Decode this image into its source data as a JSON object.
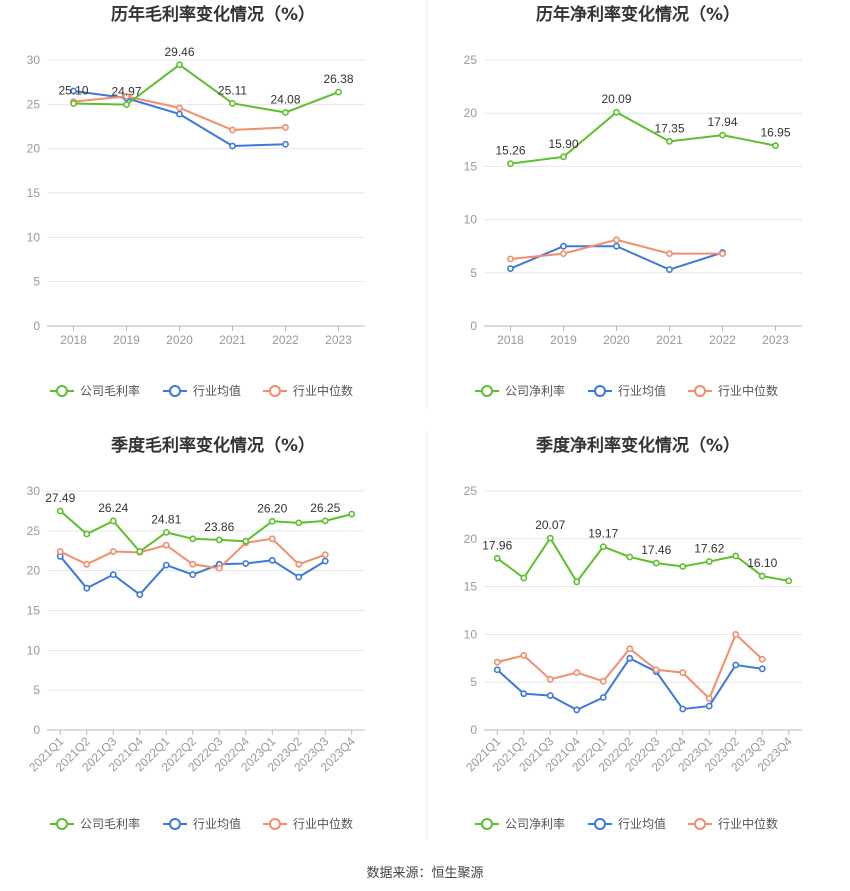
{
  "source_label": "数据来源：恒生聚源",
  "colors": {
    "company": "#5cc02c",
    "industry_avg": "#3d78dc",
    "industry_median": "#f38d6b",
    "grid": "#e6e6e6",
    "axis": "#999999",
    "text": "#333333"
  },
  "chart_data": [
    {
      "type": "line",
      "title": "历年毛利率变化情况（%）",
      "categories": [
        "2018",
        "2019",
        "2020",
        "2021",
        "2022",
        "2023"
      ],
      "ylim": [
        0,
        30
      ],
      "yticks": [
        0,
        5,
        10,
        15,
        20,
        25,
        30
      ],
      "grid": true,
      "legend": "bottom",
      "series": [
        {
          "name": "公司毛利率",
          "color": "#5cc02c",
          "values": [
            25.1,
            24.97,
            29.46,
            25.11,
            24.08,
            26.38
          ],
          "labels": [
            "25.10",
            "24.97",
            "29.46",
            "25.11",
            "24.08",
            "26.38"
          ]
        },
        {
          "name": "行业均值",
          "color": "#3d78dc",
          "values": [
            26.5,
            25.7,
            23.9,
            20.3,
            20.5,
            null
          ]
        },
        {
          "name": "行业中位数",
          "color": "#f38d6b",
          "values": [
            25.3,
            25.9,
            24.6,
            22.1,
            22.4,
            null
          ]
        }
      ]
    },
    {
      "type": "line",
      "title": "历年净利率变化情况（%）",
      "categories": [
        "2018",
        "2019",
        "2020",
        "2021",
        "2022",
        "2023"
      ],
      "ylim": [
        0,
        25
      ],
      "yticks": [
        0,
        5,
        10,
        15,
        20,
        25
      ],
      "grid": true,
      "legend": "bottom",
      "series": [
        {
          "name": "公司净利率",
          "color": "#5cc02c",
          "values": [
            15.26,
            15.9,
            20.09,
            17.35,
            17.94,
            16.95
          ],
          "labels": [
            "15.26",
            "15.90",
            "20.09",
            "17.35",
            "17.94",
            "16.95"
          ]
        },
        {
          "name": "行业均值",
          "color": "#3d78dc",
          "values": [
            5.4,
            7.5,
            7.5,
            5.3,
            6.9,
            null
          ]
        },
        {
          "name": "行业中位数",
          "color": "#f38d6b",
          "values": [
            6.3,
            6.8,
            8.1,
            6.8,
            6.8,
            null
          ]
        }
      ]
    },
    {
      "type": "line",
      "title": "季度毛利率变化情况（%）",
      "categories": [
        "2021Q1",
        "2021Q2",
        "2021Q3",
        "2021Q4",
        "2022Q1",
        "2022Q2",
        "2022Q3",
        "2022Q4",
        "2023Q1",
        "2023Q2",
        "2023Q3",
        "2023Q4"
      ],
      "ylim": [
        0,
        30
      ],
      "yticks": [
        0,
        5,
        10,
        15,
        20,
        25,
        30
      ],
      "grid": true,
      "legend": "bottom",
      "series": [
        {
          "name": "公司毛利率",
          "color": "#5cc02c",
          "values": [
            27.49,
            24.6,
            26.24,
            22.4,
            24.81,
            24.0,
            23.86,
            23.7,
            26.2,
            26.0,
            26.25,
            27.1
          ],
          "labels": [
            "27.49",
            "",
            "26.24",
            "",
            "24.81",
            "",
            "23.86",
            "",
            "26.20",
            "",
            "26.25",
            ""
          ]
        },
        {
          "name": "行业均值",
          "color": "#3d78dc",
          "values": [
            21.8,
            17.8,
            19.5,
            17.0,
            20.7,
            19.5,
            20.8,
            20.9,
            21.3,
            19.2,
            21.2,
            null
          ]
        },
        {
          "name": "行业中位数",
          "color": "#f38d6b",
          "values": [
            22.4,
            20.8,
            22.4,
            22.3,
            23.2,
            20.8,
            20.3,
            23.5,
            24.0,
            20.8,
            22.0,
            null
          ]
        }
      ]
    },
    {
      "type": "line",
      "title": "季度净利率变化情况（%）",
      "categories": [
        "2021Q1",
        "2021Q2",
        "2021Q3",
        "2021Q4",
        "2022Q1",
        "2022Q2",
        "2022Q3",
        "2022Q4",
        "2023Q1",
        "2023Q2",
        "2023Q3",
        "2023Q4"
      ],
      "ylim": [
        0,
        25
      ],
      "yticks": [
        0,
        5,
        10,
        15,
        20,
        25
      ],
      "grid": true,
      "legend": "bottom",
      "series": [
        {
          "name": "公司净利率",
          "color": "#5cc02c",
          "values": [
            17.96,
            15.9,
            20.07,
            15.5,
            19.17,
            18.1,
            17.46,
            17.1,
            17.62,
            18.2,
            16.1,
            15.6
          ],
          "labels": [
            "17.96",
            "",
            "20.07",
            "",
            "19.17",
            "",
            "17.46",
            "",
            "17.62",
            "",
            "16.10",
            ""
          ]
        },
        {
          "name": "行业均值",
          "color": "#3d78dc",
          "values": [
            6.3,
            3.8,
            3.6,
            2.1,
            3.4,
            7.5,
            6.1,
            2.2,
            2.5,
            6.8,
            6.4,
            null
          ]
        },
        {
          "name": "行业中位数",
          "color": "#f38d6b",
          "values": [
            7.1,
            7.8,
            5.3,
            6.0,
            5.1,
            8.5,
            6.3,
            6.0,
            3.3,
            10.0,
            7.4,
            null
          ]
        }
      ]
    }
  ]
}
